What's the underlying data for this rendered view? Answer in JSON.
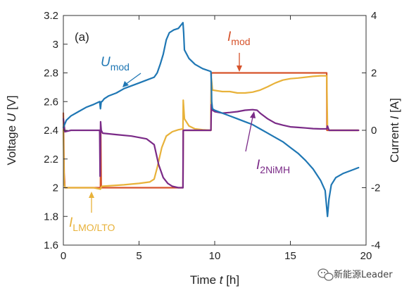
{
  "chart_data": {
    "type": "line",
    "panel_label": "(a)",
    "xlabel": "Time t [h]",
    "xlabel_main": "Time ",
    "xlabel_var": "t",
    "xlabel_unit": " [h]",
    "ylabel_left": "Voltage U [V]",
    "ylabel_left_main": "Voltage ",
    "ylabel_left_var": "U",
    "ylabel_left_unit": " [V]",
    "ylabel_right": "Current I [A]",
    "ylabel_right_main": "Current ",
    "ylabel_right_var": "I",
    "ylabel_right_unit": " [A]",
    "xlim": [
      0,
      20
    ],
    "ylim_left": [
      1.6,
      3.2
    ],
    "ylim_right": [
      -4,
      4
    ],
    "xticks": [
      0,
      5,
      10,
      15,
      20
    ],
    "yticks_left": [
      "1.6",
      "1.8",
      "2",
      "2.2",
      "2.4",
      "2.6",
      "2.8",
      "3",
      "3.2"
    ],
    "yticks_right": [
      "-4",
      "-2",
      "0",
      "2",
      "4"
    ],
    "grid": false,
    "colors": {
      "u_mod": "#1f77b4",
      "i_mod": "#d6532b",
      "i_lmo_lto": "#e8b23a",
      "i_2nimh": "#7a2a87"
    },
    "series": [
      {
        "name": "U_mod",
        "label_main": "U",
        "label_sub": "mod",
        "axis": "left",
        "color": "#1f77b4",
        "x": [
          0,
          0.2,
          0.5,
          1.0,
          1.5,
          2.0,
          2.4,
          2.45,
          2.5,
          2.55,
          2.7,
          3.0,
          3.5,
          4.0,
          4.5,
          5.0,
          5.5,
          6.0,
          6.2,
          6.4,
          6.6,
          6.8,
          7.0,
          7.3,
          7.6,
          7.9,
          7.95,
          8.0,
          8.3,
          8.7,
          9.2,
          9.75,
          9.78,
          9.8,
          9.85,
          10.0,
          10.5,
          11.0,
          11.5,
          12.0,
          12.5,
          13.0,
          13.5,
          14.0,
          14.5,
          15.0,
          15.5,
          16.0,
          16.5,
          17.0,
          17.3,
          17.45,
          17.55,
          17.7,
          18.0,
          18.5,
          19.0,
          19.5
        ],
        "y": [
          2.42,
          2.47,
          2.5,
          2.53,
          2.56,
          2.58,
          2.6,
          2.55,
          2.6,
          2.6,
          2.62,
          2.64,
          2.66,
          2.69,
          2.71,
          2.73,
          2.75,
          2.77,
          2.8,
          2.86,
          2.93,
          3.03,
          3.08,
          3.1,
          3.11,
          3.15,
          3.08,
          2.96,
          2.9,
          2.86,
          2.83,
          2.81,
          2.73,
          2.6,
          2.55,
          2.54,
          2.52,
          2.5,
          2.48,
          2.46,
          2.44,
          2.41,
          2.38,
          2.35,
          2.32,
          2.28,
          2.24,
          2.19,
          2.13,
          2.05,
          1.98,
          1.8,
          1.92,
          2.02,
          2.07,
          2.1,
          2.12,
          2.14
        ]
      },
      {
        "name": "I_mod",
        "label_main": "I",
        "label_sub": "mod",
        "axis": "right",
        "color": "#d6532b",
        "x": [
          0,
          0.05,
          0.1,
          2.45,
          2.47,
          2.5,
          7.9,
          7.92,
          7.95,
          9.75,
          9.77,
          9.8,
          17.4,
          17.42,
          17.45,
          19.5
        ],
        "y": [
          0.6,
          -1.5,
          -2,
          -2,
          0,
          -2,
          -2,
          0,
          0,
          0,
          2,
          2,
          2,
          0,
          0,
          0
        ]
      },
      {
        "name": "I_LMO/LTO",
        "label_main": "I",
        "label_sub": "LMO/LTO",
        "axis": "right",
        "color": "#e8b23a",
        "x": [
          0,
          0.05,
          0.1,
          2.0,
          2.45,
          2.48,
          2.55,
          4.0,
          5.0,
          5.7,
          6.0,
          6.2,
          6.5,
          6.8,
          7.2,
          7.6,
          7.9,
          7.92,
          8.0,
          8.3,
          8.7,
          9.2,
          9.75,
          9.78,
          9.85,
          10.5,
          11.0,
          11.5,
          12.0,
          12.5,
          13.0,
          13.5,
          14.0,
          14.5,
          15.0,
          15.5,
          16.0,
          16.5,
          17.0,
          17.4,
          17.45,
          17.55,
          19.5
        ],
        "y": [
          0,
          -1.8,
          -2,
          -2,
          -2.05,
          -2,
          -1.95,
          -1.9,
          -1.85,
          -1.8,
          -1.7,
          -1.3,
          -0.6,
          -0.2,
          -0.05,
          0.02,
          0.05,
          1.05,
          0.4,
          0.15,
          0.05,
          0.02,
          0.0,
          1.8,
          1.4,
          1.35,
          1.35,
          1.3,
          1.3,
          1.33,
          1.4,
          1.52,
          1.65,
          1.75,
          1.8,
          1.82,
          1.85,
          1.88,
          1.9,
          1.9,
          0.1,
          0.0,
          0.0
        ]
      },
      {
        "name": "I_2NiMH",
        "label_main": "I",
        "label_sub": "2NiMH",
        "axis": "right",
        "color": "#7a2a87",
        "x": [
          0,
          0.1,
          0.5,
          1.0,
          1.5,
          2.0,
          2.4,
          2.43,
          2.46,
          2.5,
          2.6,
          3.5,
          4.5,
          5.5,
          6.0,
          6.3,
          6.6,
          6.9,
          7.2,
          7.6,
          7.9,
          7.92,
          8.0,
          9.75,
          9.78,
          9.85,
          10.0,
          10.5,
          11.0,
          11.5,
          12.0,
          12.5,
          12.8,
          13.0,
          13.5,
          14.0,
          14.5,
          15.0,
          15.5,
          16.0,
          16.5,
          17.0,
          17.4,
          17.45,
          17.55,
          19.5
        ],
        "y": [
          0.4,
          -0.05,
          0.0,
          0.0,
          0.0,
          0.0,
          0.0,
          -1.6,
          0.3,
          0.0,
          -0.1,
          -0.15,
          -0.2,
          -0.3,
          -0.5,
          -1.2,
          -1.65,
          -1.85,
          -1.95,
          -2.0,
          -2.0,
          0.0,
          0.0,
          0.0,
          0.9,
          0.7,
          0.65,
          0.6,
          0.62,
          0.65,
          0.7,
          0.72,
          0.7,
          0.6,
          0.4,
          0.25,
          0.18,
          0.12,
          0.1,
          0.08,
          0.06,
          0.05,
          0.05,
          0.15,
          0.0,
          0.0
        ]
      }
    ]
  },
  "watermark": {
    "text": "新能源Leader",
    "icon": "wechat-icon"
  }
}
